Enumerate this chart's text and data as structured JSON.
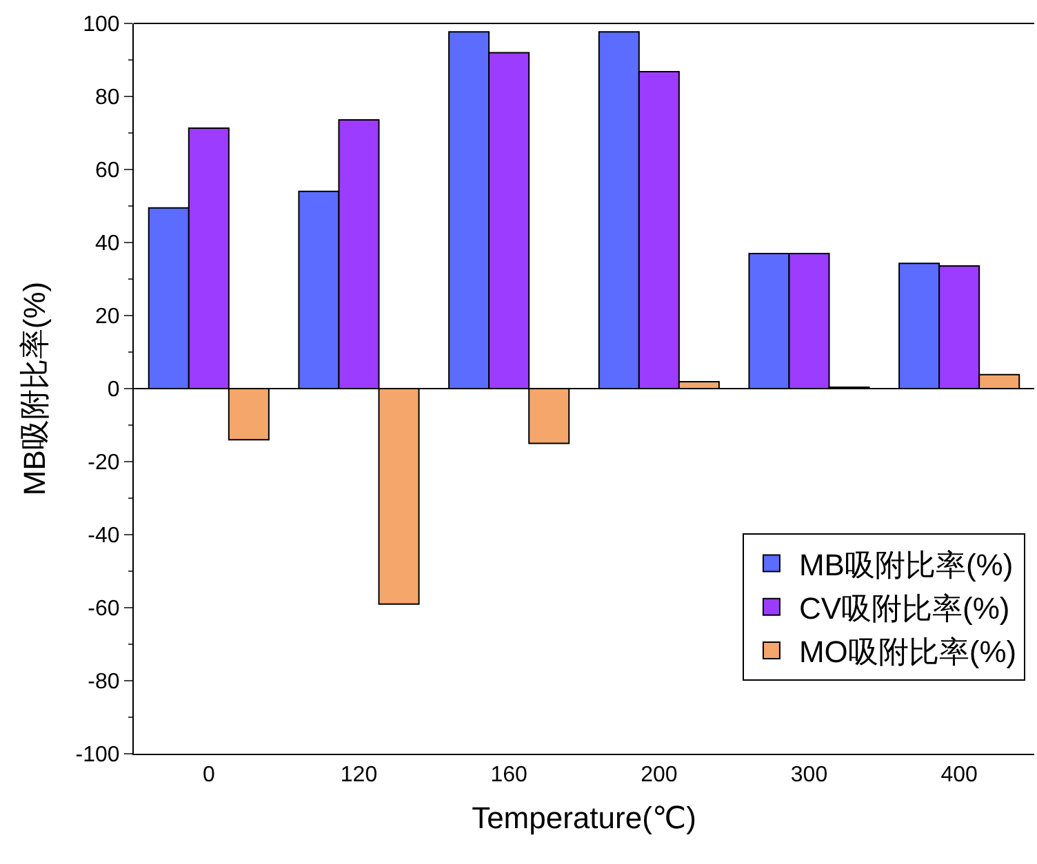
{
  "chart_data": {
    "type": "bar",
    "xlabel": "Temperature(℃)",
    "ylabel": "MB吸附比率(%)",
    "categories": [
      "0",
      "120",
      "160",
      "200",
      "300",
      "400"
    ],
    "series": [
      {
        "name": "MB吸附比率(%)",
        "color": "#5b6cff",
        "values": [
          49.5,
          54,
          97.7,
          97.7,
          37,
          34.3
        ]
      },
      {
        "name": "CV吸附比率(%)",
        "color": "#9b3cff",
        "values": [
          71.3,
          73.6,
          92,
          86.8,
          37,
          33.6
        ]
      },
      {
        "name": "MO吸附比率(%)",
        "color": "#f5a66a",
        "values": [
          -14,
          -59,
          -15,
          1.9,
          0.4,
          3.8
        ]
      }
    ],
    "ylim": [
      -100,
      100
    ],
    "yticks": [
      -100,
      -80,
      -60,
      -40,
      -20,
      0,
      20,
      40,
      60,
      80,
      100
    ],
    "legend": "bottom right"
  }
}
